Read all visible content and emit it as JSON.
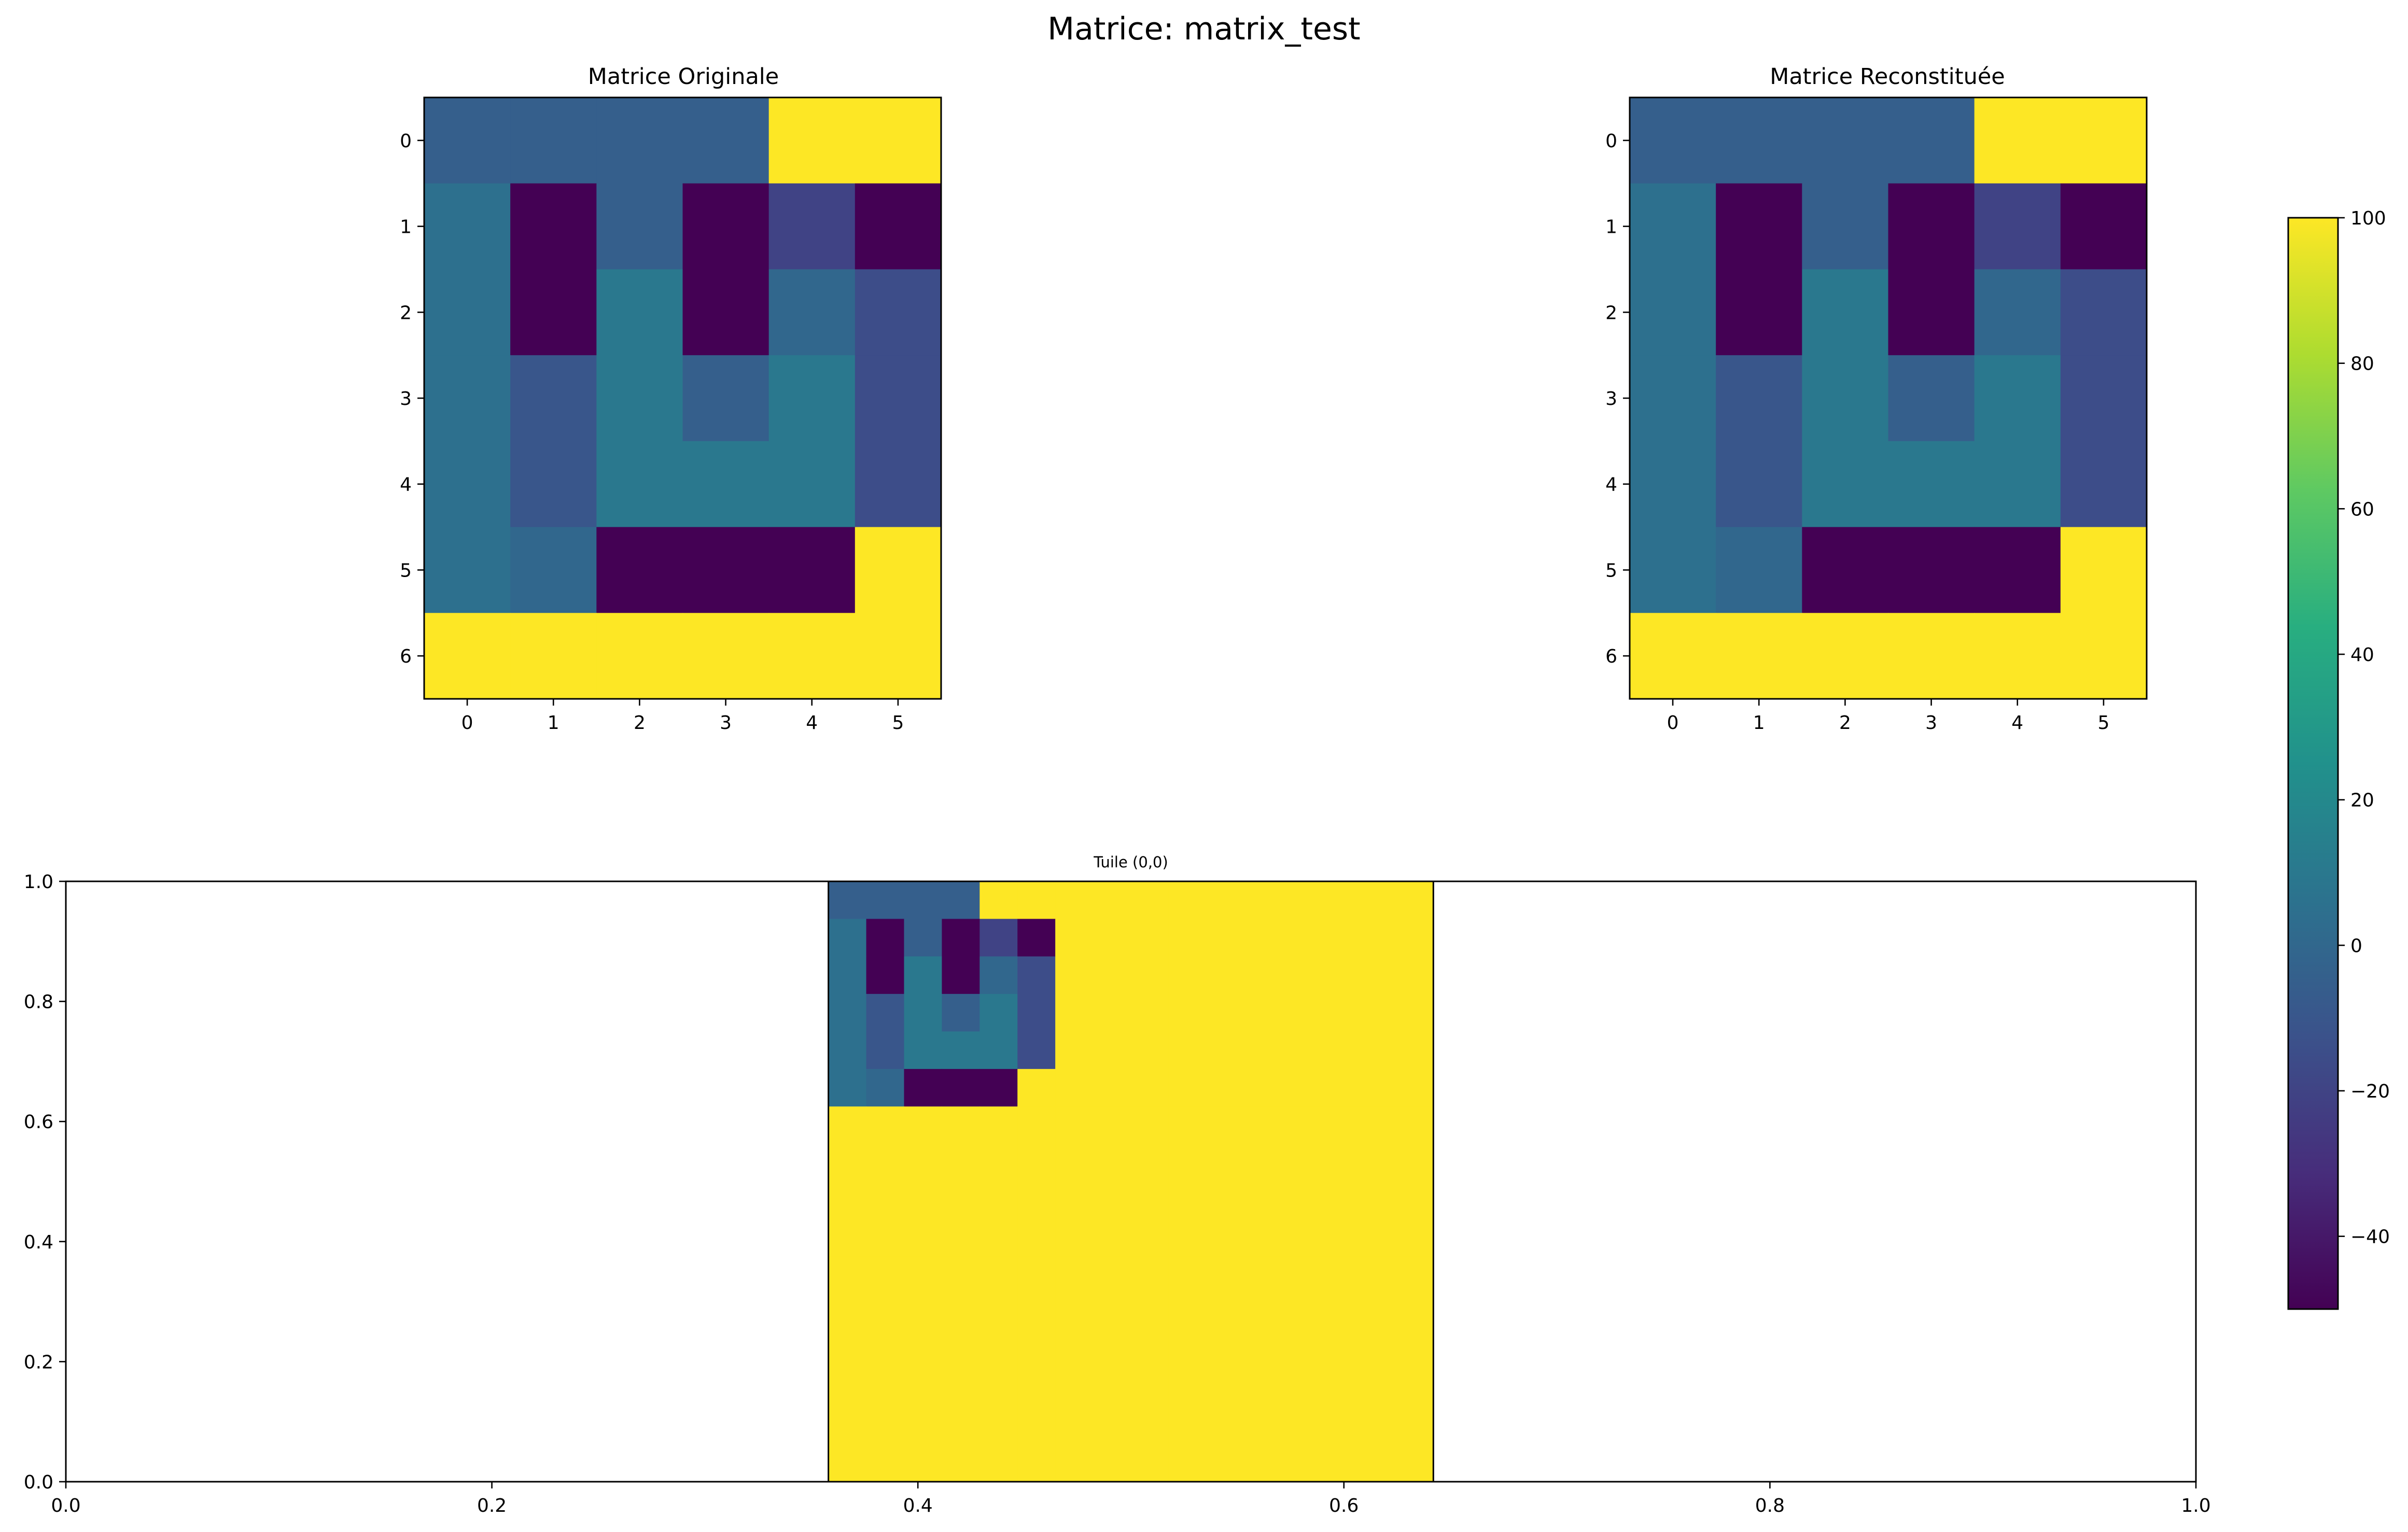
{
  "suptitle": "Matrice: matrix_test",
  "chart_data": [
    {
      "type": "heatmap",
      "title": "Matrice Originale",
      "colormap": "viridis",
      "vmin": -50,
      "vmax": 100,
      "x_ticks": [
        "0",
        "1",
        "2",
        "3",
        "4",
        "5"
      ],
      "y_ticks": [
        "0",
        "1",
        "2",
        "3",
        "4",
        "5",
        "6"
      ],
      "matrix": [
        [
          -5,
          -5,
          -5,
          -5,
          100,
          100
        ],
        [
          5,
          -50,
          -5,
          -50,
          -20,
          -50
        ],
        [
          5,
          -50,
          10,
          -50,
          0,
          -15
        ],
        [
          5,
          -10,
          10,
          -5,
          10,
          -15
        ],
        [
          5,
          -10,
          10,
          10,
          10,
          -15
        ],
        [
          5,
          0,
          -50,
          -50,
          -50,
          100
        ],
        [
          100,
          100,
          100,
          100,
          100,
          100
        ]
      ]
    },
    {
      "type": "heatmap",
      "title": "Matrice Reconstituée",
      "colormap": "viridis",
      "vmin": -50,
      "vmax": 100,
      "x_ticks": [
        "0",
        "1",
        "2",
        "3",
        "4",
        "5"
      ],
      "y_ticks": [
        "0",
        "1",
        "2",
        "3",
        "4",
        "5",
        "6"
      ],
      "matrix": [
        [
          -5,
          -5,
          -5,
          -5,
          100,
          100
        ],
        [
          5,
          -50,
          -5,
          -50,
          -20,
          -50
        ],
        [
          5,
          -50,
          10,
          -50,
          0,
          -15
        ],
        [
          5,
          -10,
          10,
          -5,
          10,
          -15
        ],
        [
          5,
          -10,
          10,
          10,
          10,
          -15
        ],
        [
          5,
          0,
          -50,
          -50,
          -50,
          100
        ],
        [
          100,
          100,
          100,
          100,
          100,
          100
        ]
      ]
    },
    {
      "type": "heatmap",
      "title": "Tuile (0,0)",
      "colormap": "viridis",
      "vmin": -50,
      "vmax": 100,
      "xlim": [
        0.0,
        1.0
      ],
      "ylim": [
        0.0,
        1.0
      ],
      "extent": [
        0.358,
        0.642,
        0.0,
        1.0
      ],
      "x_ticks": [
        "0.0",
        "0.2",
        "0.4",
        "0.6",
        "0.8",
        "1.0"
      ],
      "y_ticks": [
        "0.0",
        "0.2",
        "0.4",
        "0.6",
        "0.8",
        "1.0"
      ],
      "tile_size": 16,
      "fill_value": 100,
      "matrix": [
        [
          -5,
          -5,
          -5,
          -5,
          100,
          100
        ],
        [
          5,
          -50,
          -5,
          -50,
          -20,
          -50
        ],
        [
          5,
          -50,
          10,
          -50,
          0,
          -15
        ],
        [
          5,
          -10,
          10,
          -5,
          10,
          -15
        ],
        [
          5,
          -10,
          10,
          10,
          10,
          -15
        ],
        [
          5,
          0,
          -50,
          -50,
          -50,
          100
        ],
        [
          100,
          100,
          100,
          100,
          100,
          100
        ]
      ]
    }
  ],
  "colorbar": {
    "vmin": -50,
    "vmax": 100,
    "ticks": [
      -40,
      -20,
      0,
      20,
      40,
      60,
      80,
      100
    ],
    "tick_labels": [
      "−40",
      "−20",
      "0",
      "20",
      "40",
      "60",
      "80",
      "100"
    ]
  }
}
